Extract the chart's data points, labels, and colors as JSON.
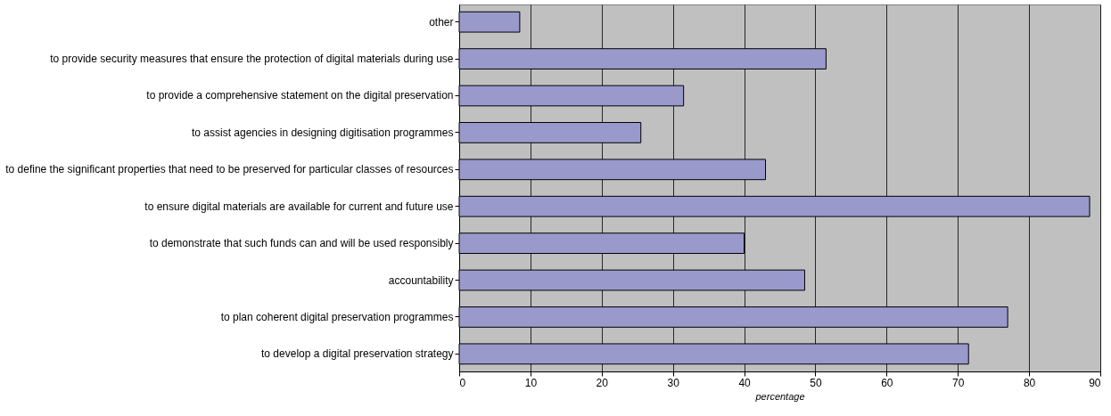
{
  "chart_data": {
    "type": "bar",
    "orientation": "horizontal",
    "xlabel": "percentage",
    "categories": [
      "other",
      "to provide security measures that ensure the protection of digital materials during use",
      "to provide a comprehensive statement on the digital preservation",
      "to assist agencies in designing digitisation programmes",
      "to define the significant properties that need to be preserved for particular classes of resources",
      "to ensure digital materials are available for current and future use",
      "to demonstrate that such funds can and will be used responsibly",
      "accountability",
      "to plan coherent digital preservation programmes",
      "to develop a digital preservation strategy"
    ],
    "values": [
      8.5,
      51.5,
      31.5,
      25.5,
      43,
      88.5,
      40,
      48.5,
      77,
      71.5
    ],
    "color": "#9999cc",
    "xlim": [
      0,
      90
    ],
    "xticks": [
      0,
      10,
      20,
      30,
      40,
      50,
      60,
      70,
      80,
      90
    ],
    "grid": "x"
  }
}
